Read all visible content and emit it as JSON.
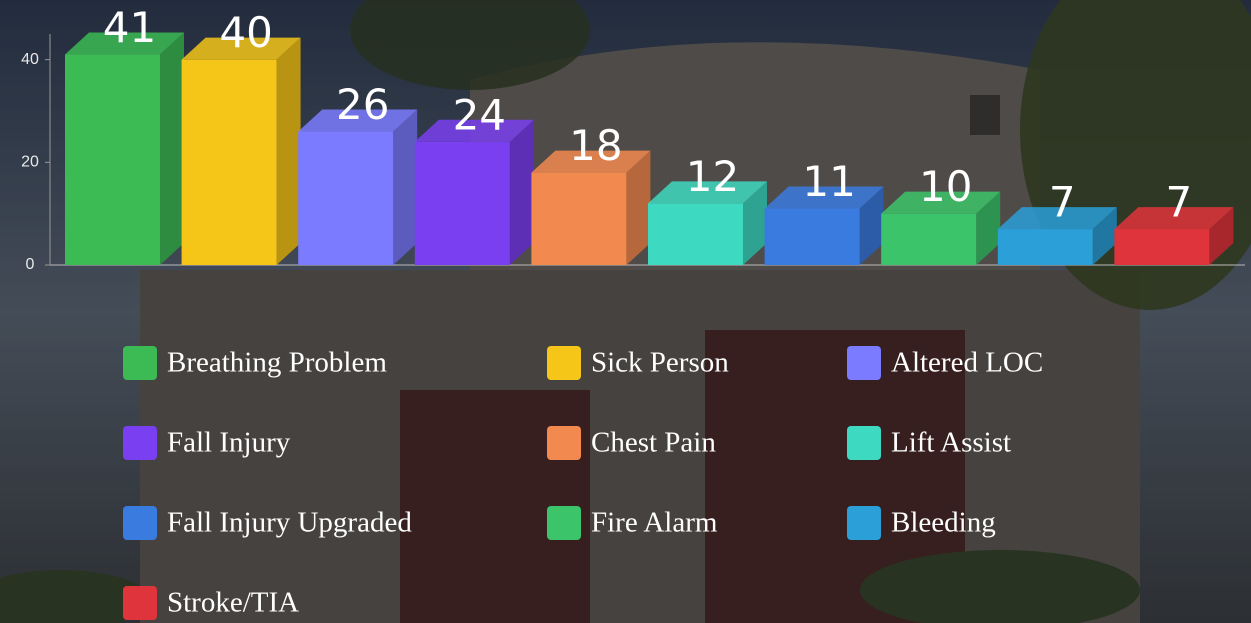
{
  "chart_data": {
    "type": "bar3d",
    "categories": [
      "Breathing Problem",
      "Sick Person",
      "Altered LOC",
      "Fall Injury",
      "Chest Pain",
      "Lift Assist",
      "Fall Injury Upgraded",
      "Fire Alarm",
      "Bleeding",
      "Stroke/TIA"
    ],
    "values": [
      41,
      40,
      26,
      24,
      18,
      12,
      11,
      10,
      7,
      7
    ],
    "colors": [
      "#3cba54",
      "#f5c518",
      "#7b7bff",
      "#7a3ff0",
      "#f28a50",
      "#3dd9c1",
      "#3a7be0",
      "#3cc46a",
      "#2a9fd8",
      "#e0343c"
    ],
    "ylim": [
      0,
      45
    ],
    "yticks": [
      0,
      20,
      40
    ]
  }
}
